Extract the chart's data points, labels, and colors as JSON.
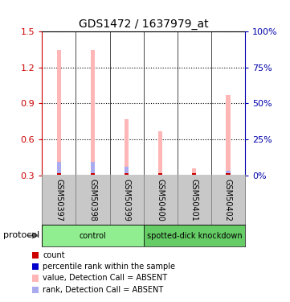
{
  "title": "GDS1472 / 1637979_at",
  "categories": [
    "GSM50397",
    "GSM50398",
    "GSM50399",
    "GSM50400",
    "GSM50401",
    "GSM50402"
  ],
  "bar_values": [
    1.35,
    1.35,
    0.77,
    0.67,
    0.36,
    0.97
  ],
  "rank_values": [
    0.41,
    0.41,
    0.37,
    0.3,
    0.0,
    0.34
  ],
  "ylim_left": [
    0.3,
    1.5
  ],
  "ylim_right": [
    0,
    100
  ],
  "yticks_left": [
    0.3,
    0.6,
    0.9,
    1.2,
    1.5
  ],
  "yticks_right": [
    0,
    25,
    50,
    75,
    100
  ],
  "left_tick_labels": [
    "0.3",
    "0.6",
    "0.9",
    "1.2",
    "1.5"
  ],
  "right_tick_labels": [
    "0%",
    "25%",
    "50%",
    "75%",
    "100%"
  ],
  "protocol_groups": [
    {
      "label": "control",
      "indices": [
        0,
        1,
        2
      ],
      "color": "#90EE90"
    },
    {
      "label": "spotted-dick knockdown",
      "indices": [
        3,
        4,
        5
      ],
      "color": "#66CC66"
    }
  ],
  "bar_color_absent": "#FFB6B6",
  "rank_color_absent": "#AAAAEE",
  "count_color": "#CC0000",
  "rank_color": "#0000CC",
  "left_axis_color": "#CC0000",
  "right_axis_color": "#0000AA",
  "bar_width": 0.12,
  "label_area_color": "#C8C8C8",
  "label_border_color": "#888888"
}
